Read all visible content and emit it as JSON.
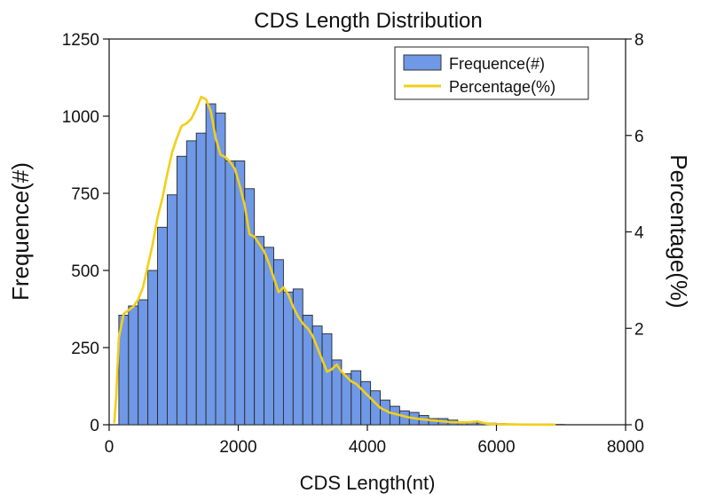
{
  "chart_data": {
    "type": "bar",
    "title": "CDS Length Distribution",
    "xlabel": "CDS Length(nt)",
    "ylabel": "Frequence(#)",
    "y2label": "Percentage(%)",
    "xlim": [
      0,
      8000
    ],
    "ylim": [
      0,
      1250
    ],
    "y2lim": [
      0,
      8
    ],
    "xticks": [
      0,
      2000,
      4000,
      6000,
      8000
    ],
    "yticks": [
      0,
      250,
      500,
      750,
      1000,
      1250
    ],
    "y2ticks": [
      0,
      2,
      4,
      6,
      8
    ],
    "xtick_labels": [
      "0",
      "2000",
      "4000",
      "6000",
      "8000"
    ],
    "ytick_labels": [
      "0",
      "250",
      "500",
      "750",
      "1000",
      "1250"
    ],
    "y2tick_labels": [
      "0",
      "2",
      "4",
      "6",
      "8"
    ],
    "bin_width": 150,
    "bin_starts": [
      150,
      300,
      450,
      600,
      750,
      900,
      1050,
      1200,
      1350,
      1500,
      1650,
      1800,
      1950,
      2100,
      2250,
      2400,
      2550,
      2700,
      2850,
      3000,
      3150,
      3300,
      3450,
      3600,
      3750,
      3900,
      4050,
      4200,
      4350,
      4500,
      4650,
      4800,
      4950,
      5100,
      5250,
      5400,
      5550,
      5700,
      5850,
      6000,
      6150,
      6300,
      6450,
      6600,
      6750,
      6900
    ],
    "series": [
      {
        "name": "Frequence(#)",
        "axis": "left",
        "color": "#6f98e6",
        "values": [
          355,
          385,
          405,
          500,
          640,
          745,
          870,
          920,
          945,
          1040,
          1010,
          855,
          855,
          765,
          610,
          575,
          535,
          430,
          440,
          355,
          320,
          295,
          210,
          165,
          175,
          140,
          110,
          80,
          60,
          45,
          40,
          30,
          20,
          20,
          15,
          10,
          8,
          6,
          5,
          4,
          3,
          2,
          2,
          2,
          2,
          1
        ]
      },
      {
        "name": "Percentage(%)",
        "axis": "right",
        "color": "#f2cf1a",
        "x": [
          80,
          110,
          150,
          225,
          375,
          450,
          525,
          600,
          675,
          750,
          825,
          900,
          975,
          1050,
          1125,
          1200,
          1275,
          1350,
          1425,
          1500,
          1575,
          1650,
          1725,
          1800,
          1875,
          1950,
          2025,
          2100,
          2175,
          2250,
          2325,
          2400,
          2475,
          2550,
          2625,
          2700,
          2775,
          2850,
          2925,
          3000,
          3075,
          3150,
          3225,
          3300,
          3375,
          3450,
          3525,
          3600,
          3675,
          3750,
          3825,
          3900,
          3975,
          4050,
          4125,
          4200,
          4350,
          4500,
          4650,
          4800,
          4950,
          5100,
          5250,
          5400,
          5550,
          5700,
          5850,
          6000,
          6200,
          6500,
          6900
        ],
        "values": [
          0.05,
          0.6,
          1.8,
          2.3,
          2.45,
          2.6,
          2.85,
          3.3,
          3.75,
          4.3,
          4.7,
          5.2,
          5.65,
          5.95,
          6.2,
          6.25,
          6.35,
          6.55,
          6.8,
          6.75,
          6.5,
          5.95,
          5.6,
          5.55,
          5.45,
          5.3,
          4.95,
          4.55,
          3.95,
          3.9,
          3.75,
          3.6,
          3.35,
          3.05,
          2.75,
          2.85,
          2.7,
          2.45,
          2.25,
          2.1,
          2.0,
          1.85,
          1.6,
          1.35,
          1.1,
          1.15,
          1.25,
          1.1,
          1.0,
          0.9,
          0.85,
          0.75,
          0.65,
          0.55,
          0.45,
          0.35,
          0.25,
          0.2,
          0.15,
          0.12,
          0.1,
          0.08,
          0.06,
          0.05,
          0.05,
          0.07,
          0.02,
          0.01,
          0.01,
          0.0,
          0.0
        ]
      }
    ],
    "legend": {
      "position": "top-right",
      "items": [
        "Frequence(#)",
        "Percentage(%)"
      ]
    },
    "grid": false
  }
}
